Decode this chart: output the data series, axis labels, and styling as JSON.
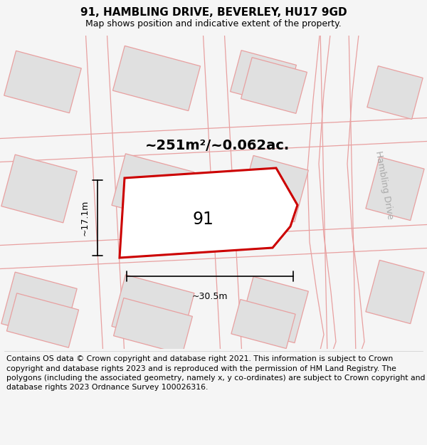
{
  "title": "91, HAMBLING DRIVE, BEVERLEY, HU17 9GD",
  "subtitle": "Map shows position and indicative extent of the property.",
  "area_label": "~251m²/~0.062ac.",
  "plot_number": "91",
  "dim_width": "~30.5m",
  "dim_height": "~17.1m",
  "road_label": "Hambling Drive",
  "footer": "Contains OS data © Crown copyright and database right 2021. This information is subject to Crown copyright and database rights 2023 and is reproduced with the permission of HM Land Registry. The polygons (including the associated geometry, namely x, y co-ordinates) are subject to Crown copyright and database rights 2023 Ordnance Survey 100026316.",
  "bg_color": "#f5f5f5",
  "map_bg": "#ffffff",
  "plot_fill": "#ffffff",
  "plot_edge": "#cc0000",
  "plot_lw": 2.2,
  "bg_poly_fill": "#e0e0e0",
  "bg_poly_edge": "#e8a0a0",
  "road_edge": "#e8a0a0",
  "title_fontsize": 11,
  "subtitle_fontsize": 9,
  "label_fontsize": 13,
  "footer_fontsize": 7.8,
  "road_label_color": "#aaaaaa",
  "road_label_fontsize": 9
}
